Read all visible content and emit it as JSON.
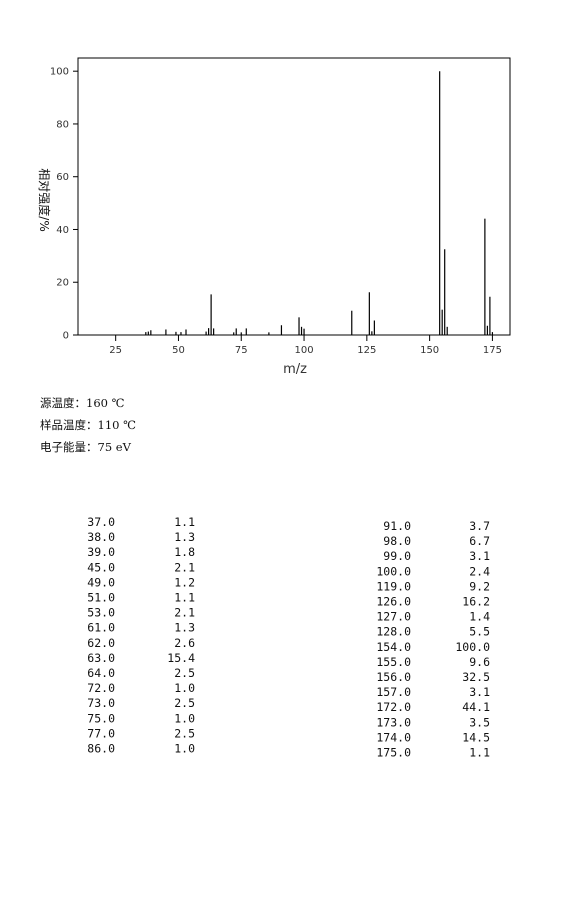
{
  "chart_data": {
    "type": "bar",
    "xlabel": "m/z",
    "ylabel": "相对强度/%",
    "color": "#000000",
    "x": [
      37,
      38,
      39,
      45,
      49,
      51,
      53,
      61,
      62,
      63,
      64,
      72,
      73,
      75,
      77,
      86,
      91,
      98,
      99,
      100,
      119,
      126,
      127,
      128,
      154,
      155,
      156,
      157,
      172,
      173,
      174,
      175
    ],
    "values": [
      1.1,
      1.3,
      1.8,
      2.1,
      1.2,
      1.1,
      2.1,
      1.3,
      2.6,
      15.4,
      2.5,
      1.0,
      2.5,
      1.0,
      2.5,
      1.0,
      3.7,
      6.7,
      3.1,
      2.4,
      9.2,
      16.2,
      1.4,
      5.5,
      100.0,
      9.6,
      32.5,
      3.1,
      44.1,
      3.5,
      14.5,
      1.1
    ],
    "xlim": [
      10,
      182
    ],
    "xticks": [
      25,
      50,
      75,
      100,
      125,
      150,
      175
    ],
    "ylim": [
      0,
      105
    ],
    "yticks": [
      0,
      20,
      40,
      60,
      80,
      100
    ]
  },
  "conditions": [
    "源温度：160 ℃",
    "样品温度：110 ℃",
    "电子能量：75 eV"
  ],
  "tables": [
    {
      "rows": [
        [
          "37.0",
          "1.1"
        ],
        [
          "38.0",
          "1.3"
        ],
        [
          "39.0",
          "1.8"
        ],
        [
          "45.0",
          "2.1"
        ],
        [
          "49.0",
          "1.2"
        ],
        [
          "51.0",
          "1.1"
        ],
        [
          "53.0",
          "2.1"
        ],
        [
          "61.0",
          "1.3"
        ],
        [
          "62.0",
          "2.6"
        ],
        [
          "63.0",
          "15.4"
        ],
        [
          "64.0",
          "2.5"
        ],
        [
          "72.0",
          "1.0"
        ],
        [
          "73.0",
          "2.5"
        ],
        [
          "75.0",
          "1.0"
        ],
        [
          "77.0",
          "2.5"
        ],
        [
          "86.0",
          "1.0"
        ]
      ]
    },
    {
      "rows": [
        [
          "91.0",
          "3.7"
        ],
        [
          "98.0",
          "6.7"
        ],
        [
          "99.0",
          "3.1"
        ],
        [
          "100.0",
          "2.4"
        ],
        [
          "119.0",
          "9.2"
        ],
        [
          "126.0",
          "16.2"
        ],
        [
          "127.0",
          "1.4"
        ],
        [
          "128.0",
          "5.5"
        ],
        [
          "154.0",
          "100.0"
        ],
        [
          "155.0",
          "9.6"
        ],
        [
          "156.0",
          "32.5"
        ],
        [
          "157.0",
          "3.1"
        ],
        [
          "172.0",
          "44.1"
        ],
        [
          "173.0",
          "3.5"
        ],
        [
          "174.0",
          "14.5"
        ],
        [
          "175.0",
          "1.1"
        ]
      ]
    }
  ]
}
